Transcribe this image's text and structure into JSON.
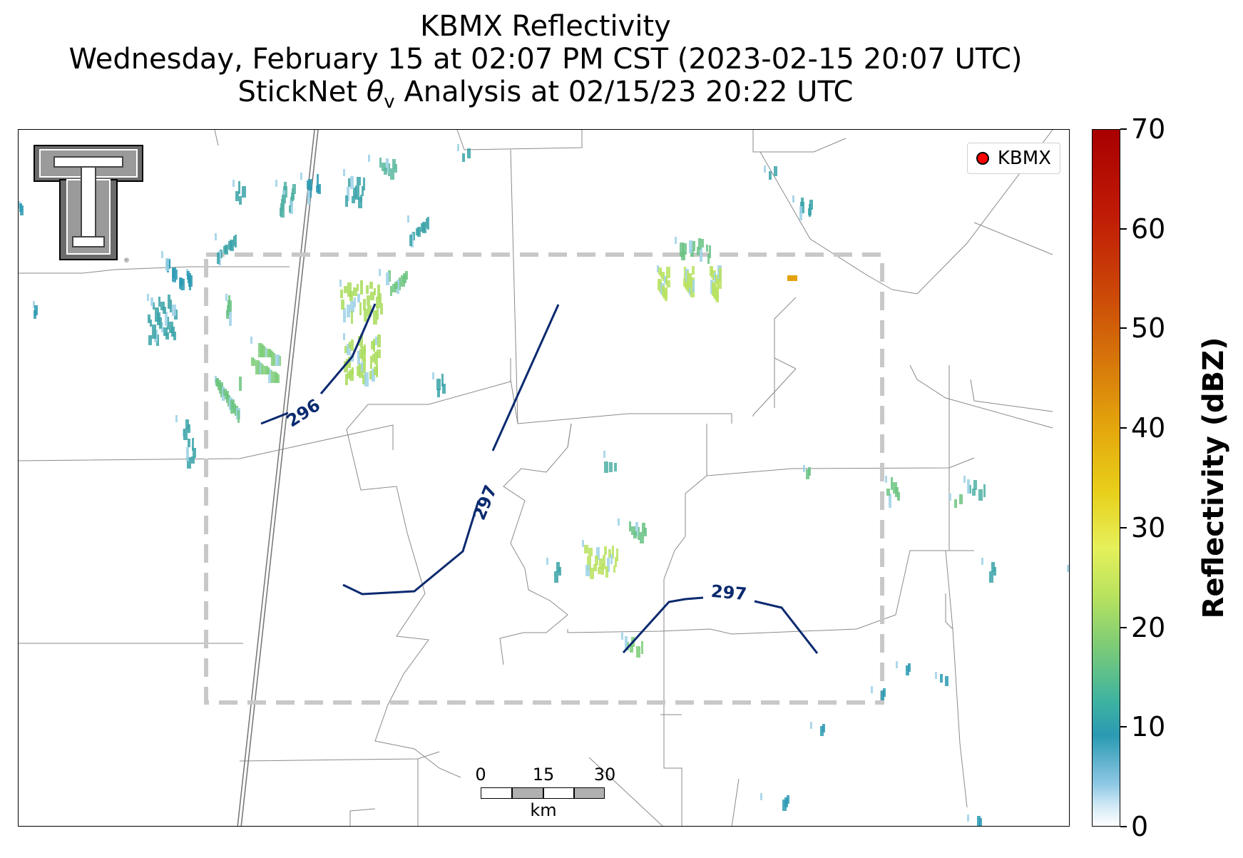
{
  "title": {
    "line1": "KBMX Reflectivity",
    "line2": "Wednesday, February 15 at 02:07 PM CST (2023-02-15 20:07 UTC)",
    "line3_prefix": "StickNet ",
    "line3_theta": "θ",
    "line3_sub": "v",
    "line3_suffix": " Analysis at 02/15/23 20:22 UTC"
  },
  "logo": {
    "name": "texas-tech-double-t-logo",
    "text": "TT"
  },
  "legend": {
    "label": "KBMX",
    "marker_color": "#ff0000"
  },
  "contours": {
    "color": "#0b2a6f",
    "labels": [
      "296",
      "297",
      "297"
    ]
  },
  "scale_bar": {
    "ticks": [
      "0",
      "15",
      "30"
    ],
    "unit": "km"
  },
  "colorbar": {
    "title": "Reflectivity (dBZ)",
    "min": 0,
    "max": 70,
    "ticks": [
      "0",
      "10",
      "20",
      "30",
      "40",
      "50",
      "60",
      "70"
    ]
  },
  "analysis_box": {
    "style": "dashed",
    "color": "#c8c8c8"
  }
}
